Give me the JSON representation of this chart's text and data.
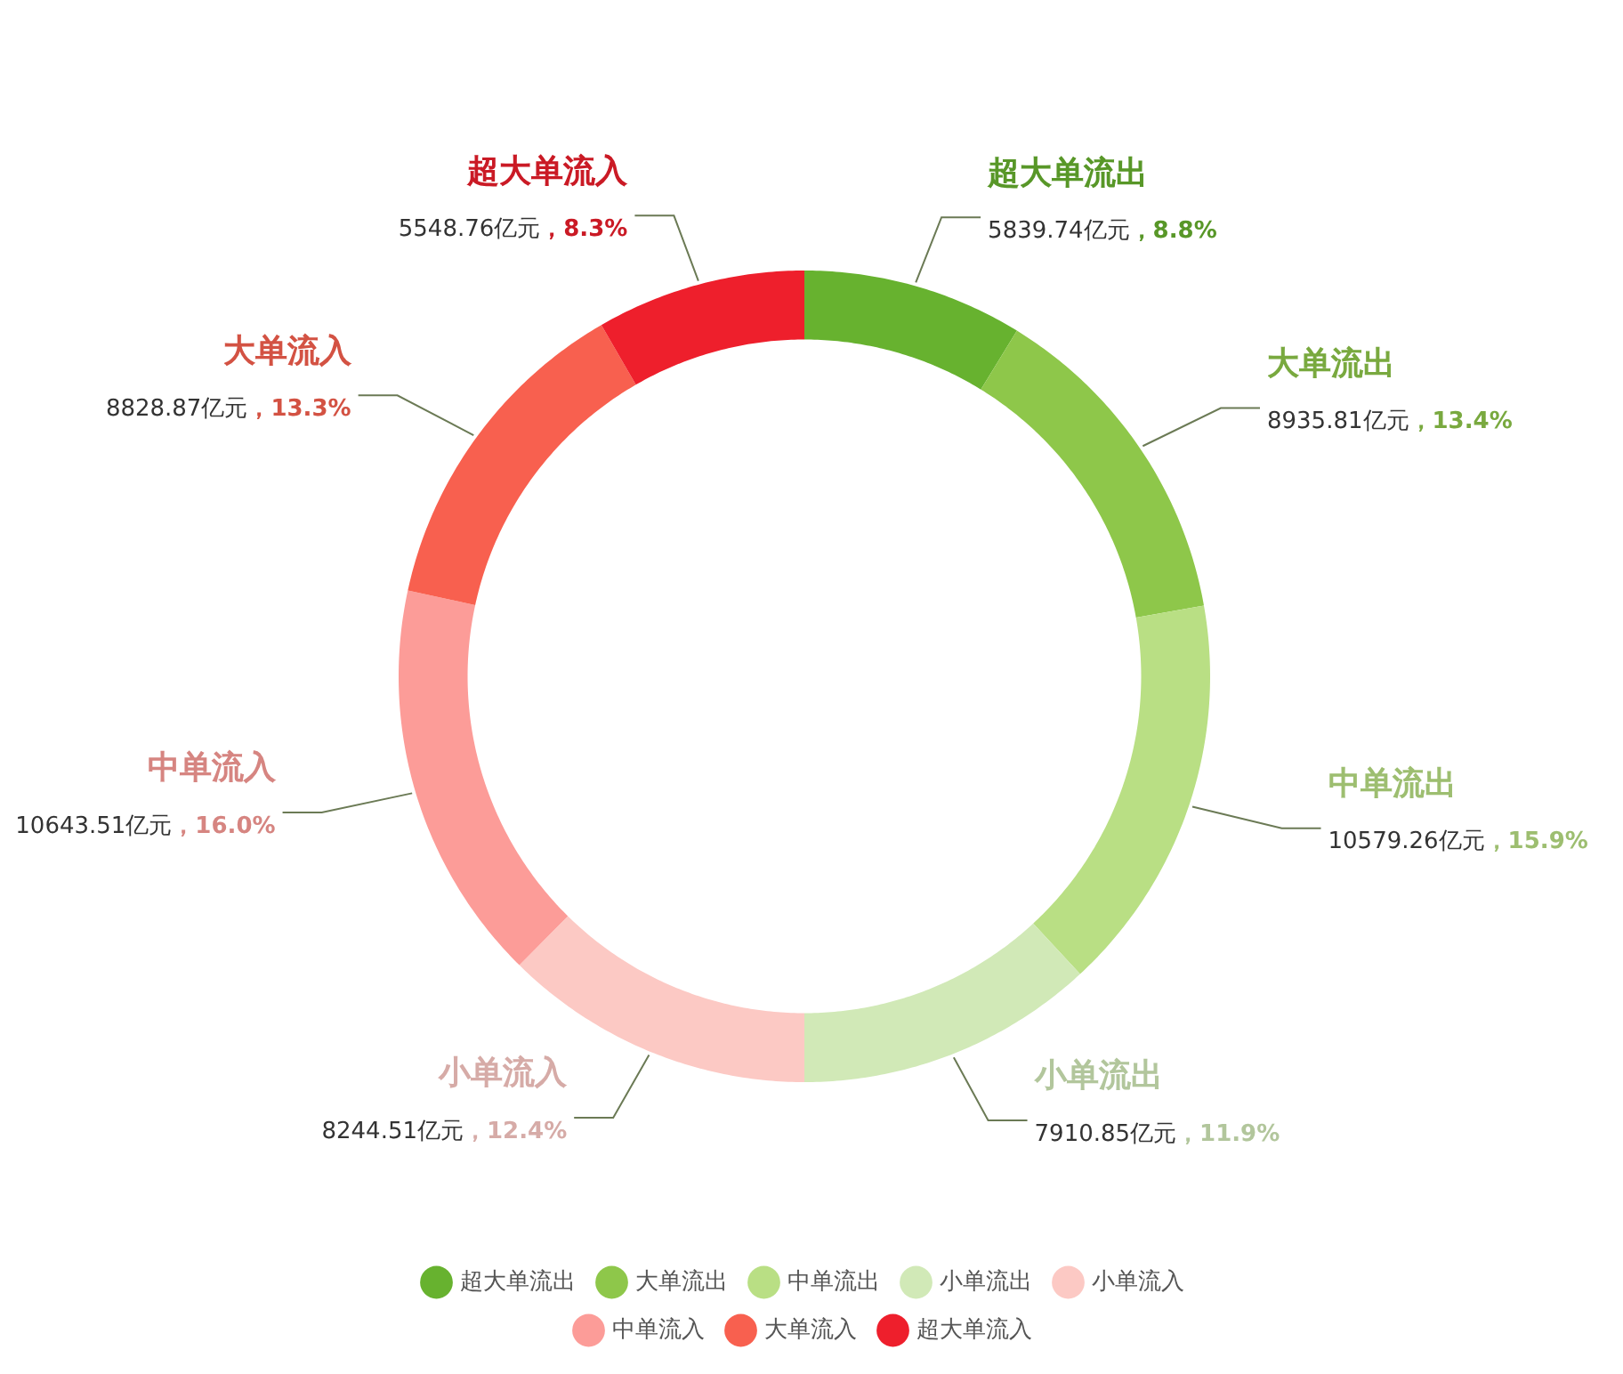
{
  "chart_data": {
    "type": "donut",
    "categories": [
      "超大单流出",
      "大单流出",
      "中单流出",
      "小单流出",
      "小单流入",
      "中单流入",
      "大单流入",
      "超大单流入"
    ],
    "values": [
      5839.74,
      8935.81,
      10579.26,
      7910.85,
      8244.51,
      10643.51,
      8828.87,
      5548.76
    ],
    "value_labels": [
      "5839.74亿元，8.8%",
      "8935.81亿元，13.4%",
      "10579.26亿元，15.9%",
      "7910.85亿元，11.9%",
      "8244.51亿元，12.4%",
      "10643.51亿元，16.0%",
      "8828.87亿元，13.3%",
      "5548.76亿元，8.3%"
    ],
    "colors": [
      "#67b22f",
      "#8ec74a",
      "#b9df84",
      "#d1e9b7",
      "#fcc9c4",
      "#fc9c98",
      "#f8604f",
      "#ee1f2c"
    ],
    "legend": "bottom"
  }
}
